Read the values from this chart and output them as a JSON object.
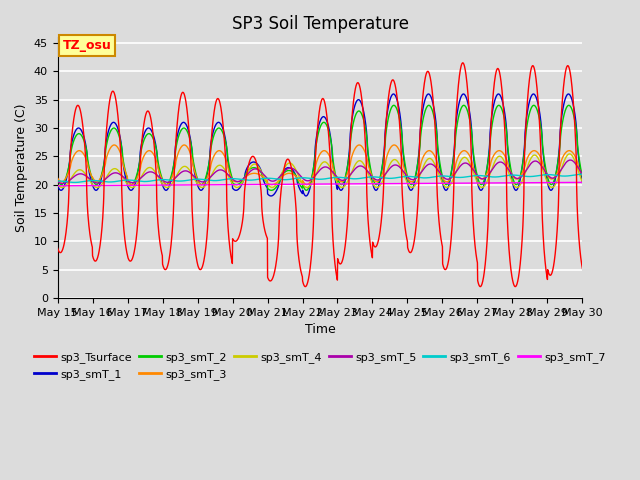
{
  "title": "SP3 Soil Temperature",
  "ylabel": "Soil Temperature (C)",
  "xlabel": "Time",
  "ylim": [
    0,
    46
  ],
  "yticks": [
    0,
    5,
    10,
    15,
    20,
    25,
    30,
    35,
    40,
    45
  ],
  "background_color": "#dcdcdc",
  "annotation_text": "TZ_osu",
  "annotation_bg": "#ffff99",
  "annotation_border": "#cc8800",
  "legend_labels": [
    "sp3_Tsurface",
    "sp3_smT_1",
    "sp3_smT_2",
    "sp3_smT_3",
    "sp3_smT_4",
    "sp3_smT_5",
    "sp3_smT_6",
    "sp3_smT_7"
  ],
  "line_colors": [
    "#ff0000",
    "#0000cc",
    "#00cc00",
    "#ff8800",
    "#cccc00",
    "#aa00aa",
    "#00cccc",
    "#ff00ff"
  ],
  "n_days": 15,
  "title_fontsize": 12,
  "label_fontsize": 9,
  "tick_fontsize": 8
}
